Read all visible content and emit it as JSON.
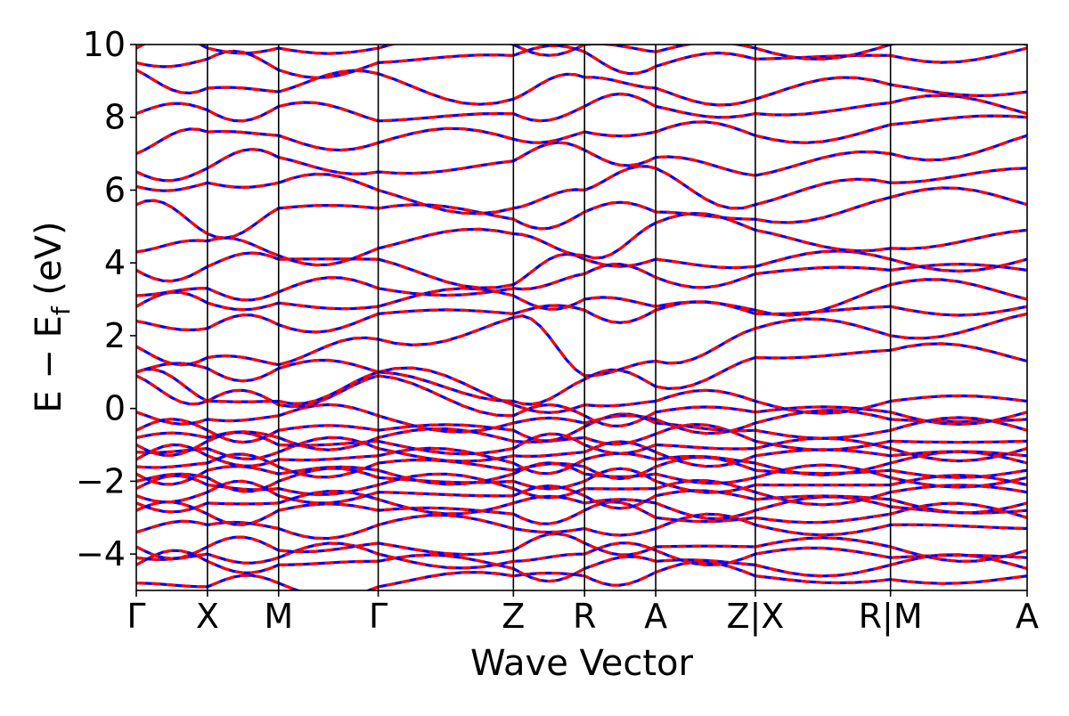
{
  "chart_data": {
    "type": "line",
    "title": "",
    "xlabel": "Wave Vector",
    "ylabel_parts": [
      "E − E",
      "f",
      " (eV)"
    ],
    "ylim": [
      -5,
      10
    ],
    "yticks": [
      {
        "value": 10,
        "label": "10"
      },
      {
        "value": 8,
        "label": "8"
      },
      {
        "value": 6,
        "label": "6"
      },
      {
        "value": 4,
        "label": "4"
      },
      {
        "value": 2,
        "label": "2"
      },
      {
        "value": 0,
        "label": "0"
      },
      {
        "value": -2,
        "label": "−2"
      },
      {
        "value": -4,
        "label": "−4"
      }
    ],
    "kpath": [
      {
        "k": 0.0,
        "label": "Γ"
      },
      {
        "k": 0.5,
        "label": "X"
      },
      {
        "k": 1.0,
        "label": "M"
      },
      {
        "k": 1.7,
        "label": "Γ"
      },
      {
        "k": 2.65,
        "label": "Z"
      },
      {
        "k": 3.15,
        "label": "R"
      },
      {
        "k": 3.65,
        "label": "A"
      },
      {
        "k": 4.35,
        "label": "Z|X"
      },
      {
        "k": 5.3,
        "label": "R|M"
      },
      {
        "k": 6.26,
        "label": "A"
      }
    ],
    "grid": false,
    "legend": "none",
    "series_styles": [
      {
        "color": "#0000ff",
        "style": "solid"
      },
      {
        "color": "#ff0000",
        "style": "dashed"
      }
    ],
    "band_energies_at_kpoints": [
      [
        -4.8,
        -4.9,
        -4.8,
        -4.9,
        -4.6,
        -4.6,
        -4.5,
        -4.6,
        -4.7,
        -4.6
      ],
      [
        -4.3,
        -4.2,
        -4.3,
        -4.2,
        -4.4,
        -4.4,
        -4.2,
        -4.3,
        -4.3,
        -4.4
      ],
      [
        -4.1,
        -4.0,
        -4.1,
        -4.0,
        -4.2,
        -4.0,
        -3.9,
        -4.0,
        -4.1,
        -4.1
      ],
      [
        -3.8,
        -3.8,
        -3.9,
        -3.7,
        -3.9,
        -3.7,
        -3.8,
        -3.8,
        -3.8,
        -3.9
      ],
      [
        -3.4,
        -3.2,
        -3.3,
        -3.2,
        -3.3,
        -3.3,
        -3.3,
        -3.2,
        -3.2,
        -3.3
      ],
      [
        -2.8,
        -2.9,
        -2.8,
        -2.8,
        -2.9,
        -2.8,
        -3.0,
        -3.0,
        -2.9,
        -3.0
      ],
      [
        -2.6,
        -2.6,
        -2.6,
        -2.5,
        -2.6,
        -2.6,
        -2.6,
        -2.8,
        -2.7,
        -2.8
      ],
      [
        -2.4,
        -2.3,
        -2.4,
        -2.3,
        -2.4,
        -2.4,
        -2.4,
        -2.5,
        -2.5,
        -2.6
      ],
      [
        -2.2,
        -2.1,
        -2.2,
        -2.1,
        -2.2,
        -2.2,
        -2.2,
        -2.3,
        -2.3,
        -2.3
      ],
      [
        -2.0,
        -1.9,
        -2.0,
        -1.9,
        -2.0,
        -2.0,
        -2.0,
        -2.1,
        -2.1,
        -2.1
      ],
      [
        -1.8,
        -1.7,
        -1.8,
        -1.7,
        -1.8,
        -1.8,
        -1.8,
        -1.9,
        -1.9,
        -1.9
      ],
      [
        -1.6,
        -1.5,
        -1.6,
        -1.5,
        -1.7,
        -1.6,
        -1.6,
        -1.7,
        -1.7,
        -1.7
      ],
      [
        -1.4,
        -1.3,
        -1.4,
        -1.3,
        -1.5,
        -1.4,
        -1.4,
        -1.5,
        -1.5,
        -1.5
      ],
      [
        -1.2,
        -1.1,
        -1.2,
        -1.1,
        -1.3,
        -1.2,
        -1.2,
        -1.3,
        -1.3,
        -1.3
      ],
      [
        -1.0,
        -0.9,
        -1.0,
        -0.9,
        -1.1,
        -1.0,
        -1.0,
        -1.1,
        -1.1,
        -1.1
      ],
      [
        -0.8,
        -0.8,
        -0.8,
        -0.8,
        -0.9,
        -0.8,
        -0.7,
        -0.9,
        -0.9,
        -0.9
      ],
      [
        -0.6,
        -0.6,
        -0.6,
        -0.6,
        -0.6,
        -0.5,
        -0.4,
        -0.6,
        -0.6,
        -0.6
      ],
      [
        -0.1,
        -0.3,
        -0.2,
        -0.2,
        -0.4,
        -0.4,
        -0.3,
        -0.4,
        -0.3,
        -0.3
      ],
      [
        0.9,
        0.2,
        0.1,
        0.9,
        -0.2,
        -0.2,
        -0.1,
        -0.1,
        -0.1,
        -0.1
      ],
      [
        1.0,
        0.2,
        0.2,
        1.0,
        0.1,
        0.1,
        0.2,
        0.2,
        0.2,
        0.2
      ],
      [
        1.0,
        1.1,
        1.1,
        1.0,
        0.2,
        0.8,
        0.6,
        1.4,
        1.6,
        1.3
      ],
      [
        1.7,
        1.4,
        1.2,
        1.9,
        2.5,
        0.9,
        1.3,
        2.2,
        2.0,
        2.6
      ],
      [
        2.4,
        2.2,
        2.3,
        2.6,
        2.6,
        2.7,
        2.7,
        2.6,
        2.8,
        2.8
      ],
      [
        2.8,
        2.9,
        2.9,
        2.8,
        3.1,
        3.0,
        2.8,
        2.7,
        3.4,
        3.0
      ],
      [
        3.1,
        3.3,
        3.2,
        3.3,
        3.3,
        3.7,
        3.6,
        3.7,
        3.8,
        3.8
      ],
      [
        3.8,
        3.9,
        4.1,
        4.1,
        3.4,
        4.1,
        4.1,
        3.9,
        4.1,
        4.1
      ],
      [
        4.3,
        4.6,
        4.2,
        4.4,
        4.8,
        4.2,
        5.1,
        4.9,
        4.4,
        4.9
      ],
      [
        5.6,
        4.8,
        5.5,
        5.5,
        5.2,
        5.4,
        5.4,
        5.2,
        5.8,
        5.6
      ],
      [
        6.1,
        6.2,
        6.2,
        6.0,
        5.5,
        6.0,
        6.6,
        5.6,
        6.2,
        6.6
      ],
      [
        6.5,
        6.6,
        6.9,
        6.5,
        6.8,
        7.1,
        6.9,
        6.4,
        7.0,
        7.5
      ],
      [
        7.0,
        7.6,
        7.5,
        7.3,
        7.4,
        7.6,
        7.6,
        7.5,
        7.8,
        8.0
      ],
      [
        8.1,
        8.2,
        8.3,
        7.9,
        8.1,
        8.3,
        8.3,
        8.1,
        8.4,
        8.1
      ],
      [
        9.3,
        8.8,
        8.7,
        9.2,
        8.5,
        9.1,
        8.8,
        8.5,
        8.9,
        8.7
      ],
      [
        9.5,
        9.6,
        9.3,
        9.5,
        9.7,
        9.8,
        9.4,
        9.6,
        9.7,
        9.9
      ],
      [
        9.9,
        9.9,
        9.9,
        9.9,
        10.0,
        10.0,
        9.8,
        9.9,
        10.0,
        10.0
      ]
    ]
  }
}
